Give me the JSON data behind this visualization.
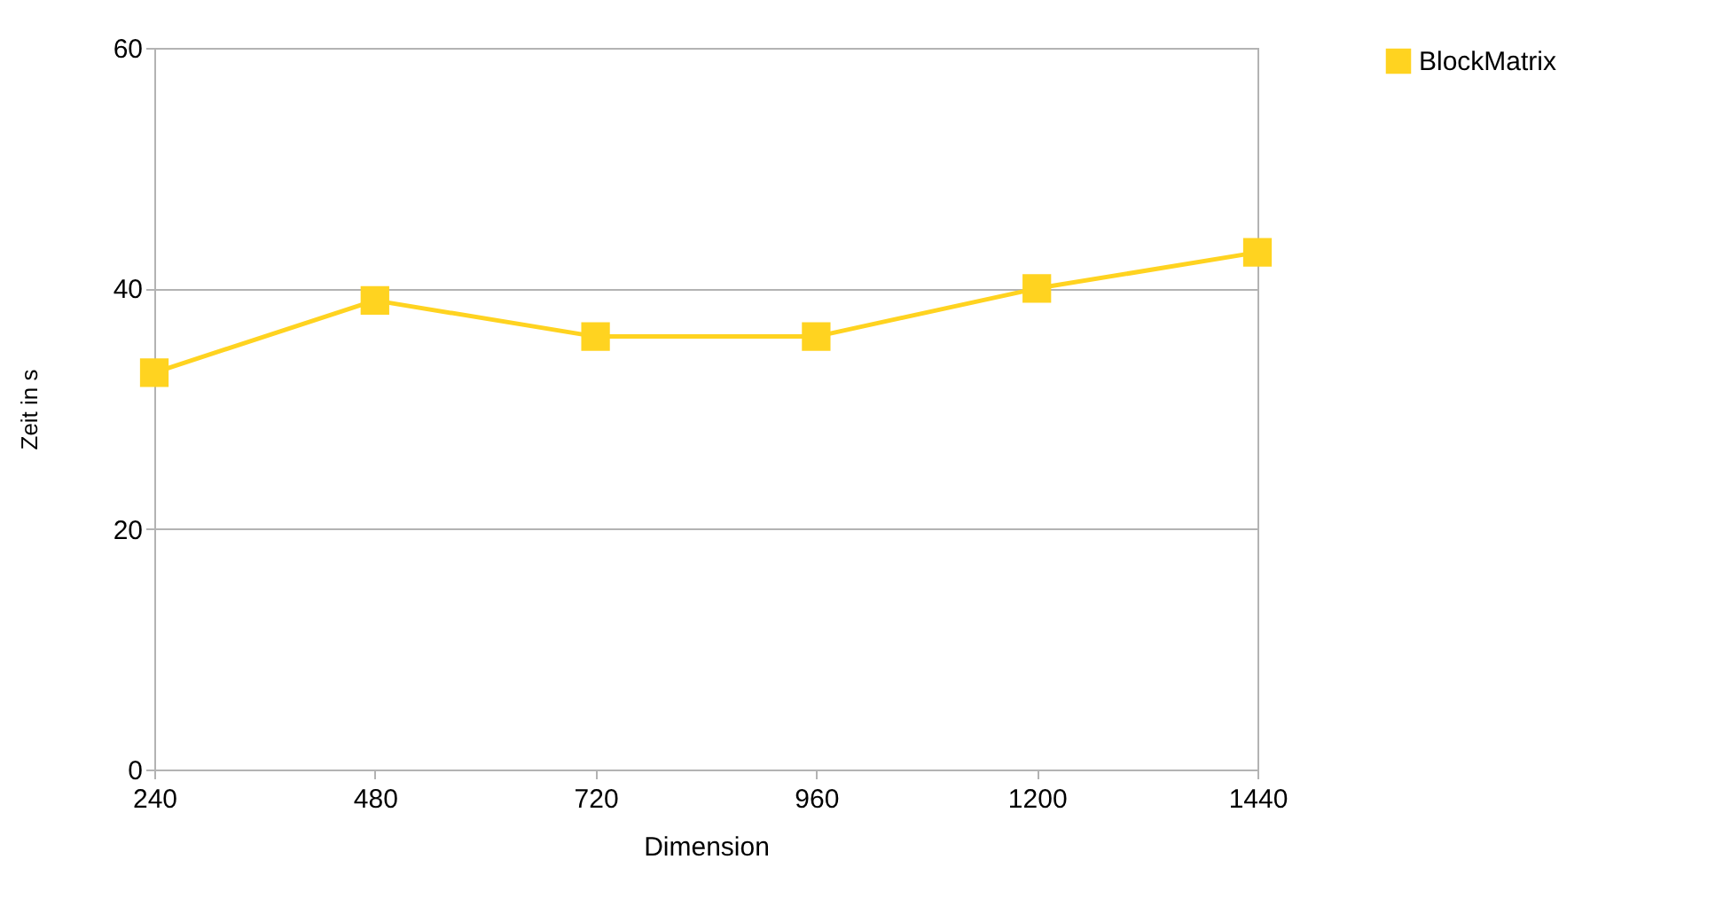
{
  "chart_data": {
    "type": "line",
    "xlabel": "Dimension",
    "ylabel": "Zeit in s",
    "x": [
      240,
      480,
      720,
      960,
      1200,
      1440
    ],
    "series": [
      {
        "name": "BlockMatrix",
        "color": "#ffd320",
        "values": [
          33,
          39,
          36,
          36,
          40,
          43
        ]
      }
    ],
    "xlim": [
      240,
      1440
    ],
    "xticks": [
      240,
      480,
      720,
      960,
      1200,
      1440
    ],
    "ylim": [
      0,
      60
    ],
    "yticks": [
      0,
      20,
      40,
      60
    ],
    "grid": "y",
    "legend": "right",
    "marker": "square",
    "line_style": "solid"
  }
}
